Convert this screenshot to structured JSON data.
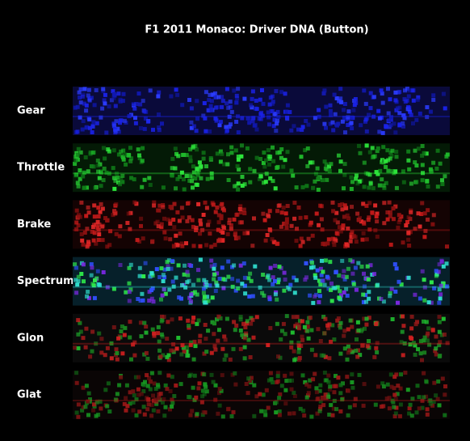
{
  "header": {
    "title": "F1 2011 Monaco: Driver DNA (Button)"
  },
  "rows": [
    {
      "label": "Gear",
      "background": "#0a0a3a",
      "colors": [
        "#1a22e8",
        "#2b3cff",
        "#1018b0"
      ]
    },
    {
      "label": "Throttle",
      "background": "#041a06",
      "colors": [
        "#2ee83c",
        "#1fb82a",
        "#0f7a18"
      ]
    },
    {
      "label": "Brake",
      "background": "#140303",
      "colors": [
        "#c41a1a",
        "#8a1010",
        "#e02828"
      ]
    },
    {
      "label": "Spectrum",
      "background": "#06202a",
      "colors": [
        "#30e0d0",
        "#2ee84a",
        "#7a28e0",
        "#3050ff"
      ]
    },
    {
      "label": "Glon",
      "background": "#0a0a0a",
      "colors": [
        "#d02020",
        "#20c030",
        "#1a8a20",
        "#901818"
      ]
    },
    {
      "label": "Glat",
      "background": "#0a0505",
      "colors": [
        "#a01818",
        "#189a22",
        "#6a1010",
        "#107018"
      ]
    }
  ]
}
